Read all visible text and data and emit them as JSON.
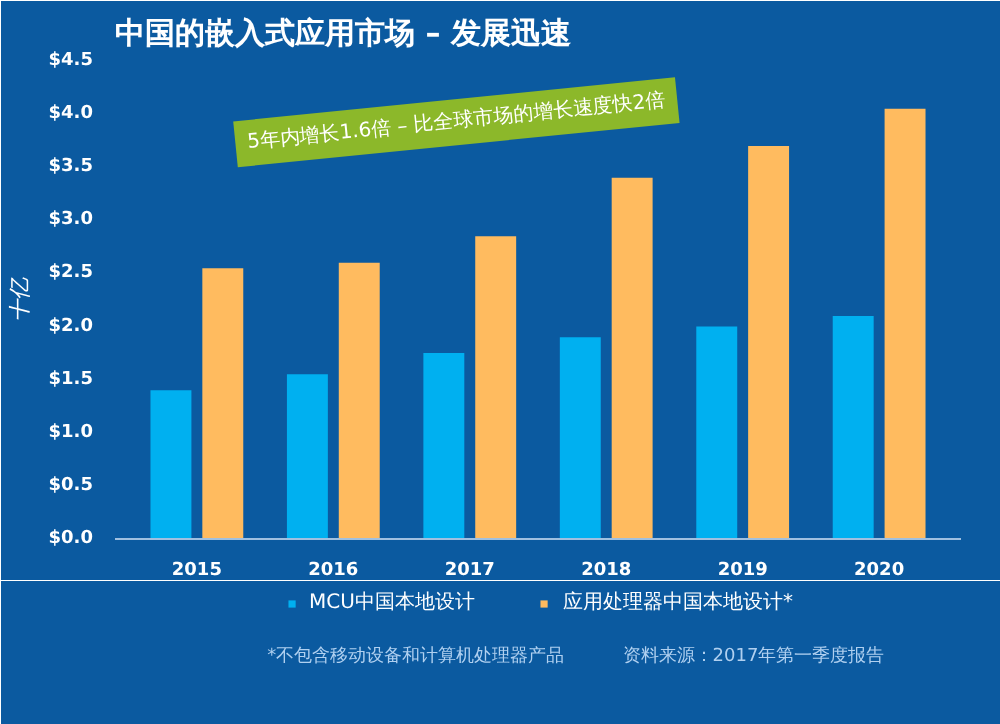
{
  "chart_data": {
    "type": "bar",
    "title": "中国的嵌入式应用市场 – 发展迅速",
    "ylabel": "十亿",
    "categories": [
      "2015",
      "2016",
      "2017",
      "2018",
      "2019",
      "2020"
    ],
    "series": [
      {
        "name": "MCU中国本地设计",
        "color": "#00b0f0",
        "values": [
          1.4,
          1.55,
          1.75,
          1.9,
          2.0,
          2.1
        ]
      },
      {
        "name": "应用处理器中国本地设计*",
        "color": "#ffbb5f",
        "values": [
          2.55,
          2.6,
          2.85,
          3.4,
          3.7,
          4.05
        ]
      }
    ],
    "ylim": [
      0,
      4.5
    ],
    "yticks": [
      {
        "value": 0,
        "label": "$0.0"
      },
      {
        "value": 0.5,
        "label": "$0.5"
      },
      {
        "value": 1,
        "label": "$1.0"
      },
      {
        "value": 1.5,
        "label": "$1.5"
      },
      {
        "value": 2,
        "label": "$2.0"
      },
      {
        "value": 2.5,
        "label": "$2.5"
      },
      {
        "value": 3,
        "label": "$3.0"
      },
      {
        "value": 3.5,
        "label": "$3.5"
      },
      {
        "value": 4,
        "label": "$4.0"
      },
      {
        "value": 4.5,
        "label": "$4.5"
      }
    ],
    "legend": "bottom",
    "grid": false,
    "annotations": [
      "5年内增长1.6倍 – 比全球市场的增长速度快2倍",
      "*不包含移动设备和计算机处理器产品",
      "资料来源：2017年第一季度报告"
    ]
  }
}
